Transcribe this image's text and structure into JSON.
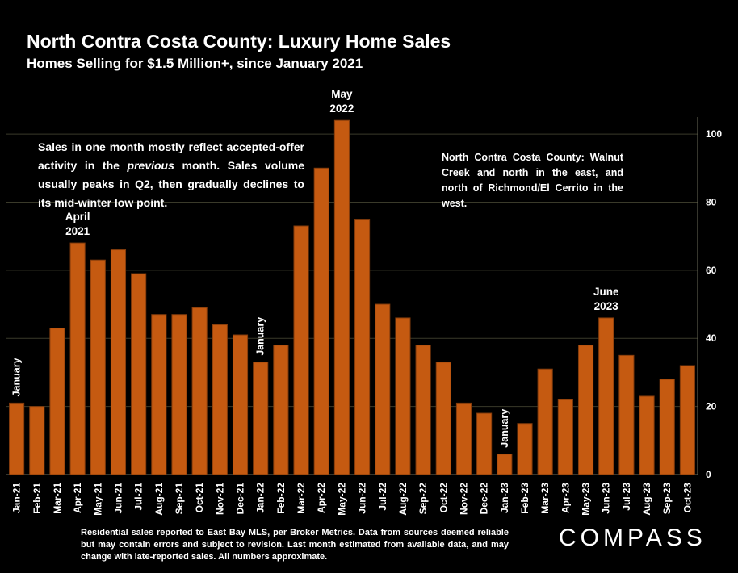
{
  "header": {
    "title": "North Contra Costa County: Luxury Home Sales",
    "subtitle": "Homes Selling for $1.5 Million+, since January 2021"
  },
  "notes": {
    "left_before": "Sales in one month mostly reflect accepted-offer activity in the ",
    "left_italic": "previous",
    "left_after": " month. Sales volume usually peaks in Q2, then gradually declines to its mid-winter low point.",
    "right": "North Contra Costa County: Walnut Creek and north in the east, and north of Richmond/El Cerrito in the west."
  },
  "footnote": "Residential sales reported to East Bay MLS, per Broker Metrics. Data from sources deemed reliable but may contain errors and subject to revision.  Last month estimated from available data, and may change with late-reported sales. All numbers approximate.",
  "logo": "COMPASS",
  "colors": {
    "background": "#000000",
    "bar": "#C55A11",
    "bar_outline": "#843C0C",
    "gridline": "#3a3a2a",
    "text": "#ffffff"
  },
  "chart_data": {
    "type": "bar",
    "title": "North Contra Costa County: Luxury Home Sales",
    "subtitle": "Homes Selling for $1.5 Million+, since January 2021",
    "categories": [
      "Jan-21",
      "Feb-21",
      "Mar-21",
      "Apr-21",
      "May-21",
      "Jun-21",
      "Jul-21",
      "Aug-21",
      "Sep-21",
      "Oct-21",
      "Nov-21",
      "Dec-21",
      "Jan-22",
      "Feb-22",
      "Mar-22",
      "Apr-22",
      "May-22",
      "Jun-22",
      "Jul-22",
      "Aug-22",
      "Sep-22",
      "Oct-22",
      "Nov-22",
      "Dec-22",
      "Jan-23",
      "Feb-23",
      "Mar-23",
      "Apr-23",
      "May-23",
      "Jun-23",
      "Jul-23",
      "Aug-23",
      "Sep-23",
      "Oct-23"
    ],
    "values": [
      21,
      20,
      43,
      68,
      63,
      66,
      59,
      47,
      47,
      49,
      44,
      41,
      33,
      38,
      73,
      90,
      104,
      75,
      50,
      46,
      38,
      33,
      21,
      18,
      6,
      15,
      31,
      22,
      38,
      46,
      35,
      23,
      28,
      32
    ],
    "xlabel": "",
    "ylabel": "",
    "ylim": [
      0,
      105
    ],
    "yticks": [
      0,
      20,
      40,
      60,
      80,
      100
    ],
    "y_axis_side": "right",
    "grid": true,
    "annotations": [
      {
        "category": "Jan-21",
        "text": "January",
        "orientation": "vertical"
      },
      {
        "category": "Apr-21",
        "text": "April 2021",
        "lines": [
          "April",
          "2021"
        ]
      },
      {
        "category": "Jan-22",
        "text": "January",
        "orientation": "vertical"
      },
      {
        "category": "May-22",
        "text": "May 2022",
        "lines": [
          "May",
          "2022"
        ]
      },
      {
        "category": "Jan-23",
        "text": "January",
        "orientation": "vertical"
      },
      {
        "category": "Jun-23",
        "text": "June 2023",
        "lines": [
          "June",
          "2023"
        ]
      }
    ]
  }
}
